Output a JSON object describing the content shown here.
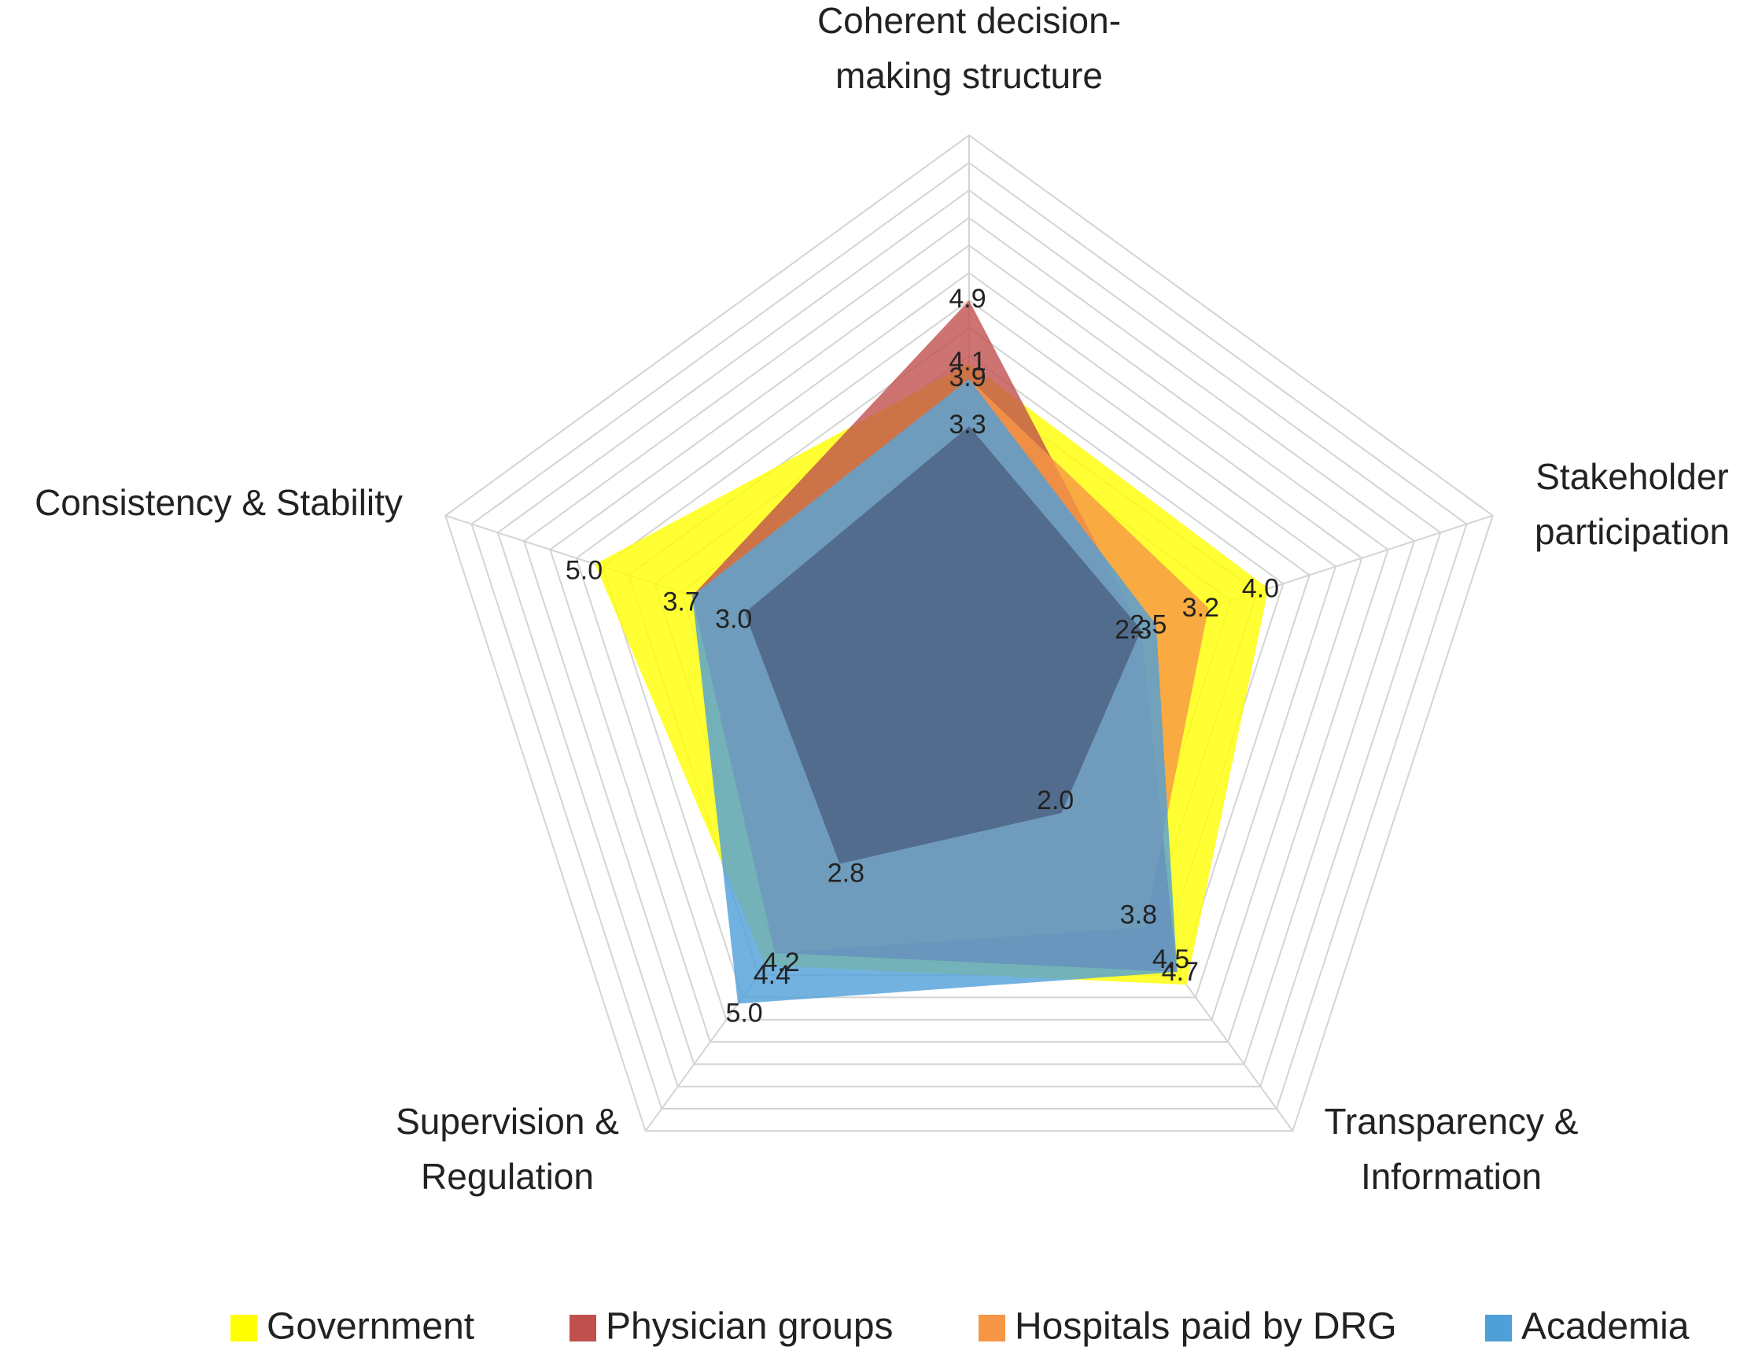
{
  "chart_data": {
    "type": "radar",
    "title": "",
    "axes": [
      [
        "Coherent decision-",
        "making structure"
      ],
      [
        "Stakeholder",
        "participation"
      ],
      [
        "Transparency &",
        "Information"
      ],
      [
        "Supervision &",
        "Regulation"
      ],
      [
        "Consistency & Stability"
      ]
    ],
    "rmax": 7,
    "gridlines": 20,
    "series": [
      {
        "name": "Government",
        "color": "#ffff00",
        "values": [
          4.1,
          4.0,
          4.7,
          4.4,
          5.0
        ]
      },
      {
        "name": "Physician groups",
        "color": "#c0504d",
        "values": [
          4.9,
          2.3,
          4.5,
          4.2,
          3.7
        ]
      },
      {
        "name": "Hospitals paid by DRG",
        "color": "#f79646",
        "values": [
          3.9,
          3.2,
          3.8,
          4.2,
          3.7
        ]
      },
      {
        "name": "Academia",
        "color": "#4f9fd9",
        "values": [
          3.9,
          2.5,
          4.5,
          5.0,
          3.7
        ]
      }
    ],
    "overlay_series": [
      {
        "name": "",
        "color": "#4d6486",
        "values": [
          3.3,
          2.3,
          2.0,
          2.8,
          3.0
        ]
      }
    ],
    "data_labels": [
      {
        "axis": 0,
        "value": 4.9,
        "text": "4.9"
      },
      {
        "axis": 0,
        "value": 4.1,
        "text": "4.1"
      },
      {
        "axis": 0,
        "value": 3.9,
        "text": "3.9"
      },
      {
        "axis": 0,
        "value": 3.3,
        "text": "3.3"
      },
      {
        "axis": 1,
        "value": 4.0,
        "text": "4.0"
      },
      {
        "axis": 1,
        "value": 3.2,
        "text": "3.2"
      },
      {
        "axis": 1,
        "value": 2.5,
        "text": "2.5"
      },
      {
        "axis": 1,
        "value": 2.3,
        "text": "2.3"
      },
      {
        "axis": 2,
        "value": 4.7,
        "text": "4.7"
      },
      {
        "axis": 2,
        "value": 4.5,
        "text": "4.5"
      },
      {
        "axis": 2,
        "value": 3.8,
        "text": "3.8"
      },
      {
        "axis": 2,
        "value": 2.0,
        "text": "2.0"
      },
      {
        "axis": 3,
        "value": 5.0,
        "text": "5.0"
      },
      {
        "axis": 3,
        "value": 4.4,
        "text": "4.4"
      },
      {
        "axis": 3,
        "value": 4.2,
        "text": "4.2"
      },
      {
        "axis": 3,
        "value": 2.8,
        "text": "2.8"
      },
      {
        "axis": 4,
        "value": 5.0,
        "text": "5.0"
      },
      {
        "axis": 4,
        "value": 3.7,
        "text": "3.7"
      },
      {
        "axis": 4,
        "value": 3.0,
        "text": "3.0"
      }
    ],
    "legend": [
      "Government",
      "Physician groups",
      "Hospitals paid by DRG",
      "Academia"
    ],
    "legend_position": "bottom"
  }
}
